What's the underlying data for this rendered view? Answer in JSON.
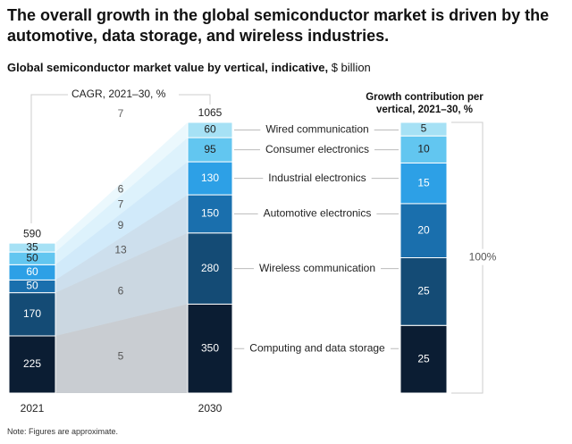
{
  "title": "The overall growth in the global semiconductor market is driven by the automotive, data storage, and wireless industries.",
  "chart_data": {
    "type": "stacked_bar_flow",
    "title": "Global semiconductor market value by vertical, indicative,",
    "unit": "$ billion",
    "categories": [
      "2021",
      "2030"
    ],
    "totals": [
      590,
      1065
    ],
    "cagr_title": "CAGR, 2021–30, %",
    "total_cagr": 7,
    "contribution_title": "Growth contribution per vertical, 2021–30, %",
    "contribution_total": {
      "value": 100,
      "label": "100%"
    },
    "series": [
      {
        "name": "Computing and data storage",
        "color": "#0b1d33",
        "values": [
          225,
          350
        ],
        "cagr": 5,
        "growth_contribution": 25
      },
      {
        "name": "Wireless communication",
        "color": "#144b75",
        "values": [
          170,
          280
        ],
        "cagr": 6,
        "growth_contribution": 25
      },
      {
        "name": "Automotive electronics",
        "color": "#1a6fad",
        "values": [
          50,
          150
        ],
        "cagr": 13,
        "growth_contribution": 20
      },
      {
        "name": "Industrial electronics",
        "color": "#2da0e6",
        "values": [
          60,
          130
        ],
        "cagr": 9,
        "growth_contribution": 15
      },
      {
        "name": "Consumer electronics",
        "color": "#62c6f0",
        "values": [
          50,
          95
        ],
        "cagr": 7,
        "growth_contribution": 10
      },
      {
        "name": "Wired communication",
        "color": "#a6e1f5",
        "values": [
          35,
          60
        ],
        "cagr": 6,
        "growth_contribution": 5
      }
    ]
  },
  "note": "Note: Figures are approximate."
}
